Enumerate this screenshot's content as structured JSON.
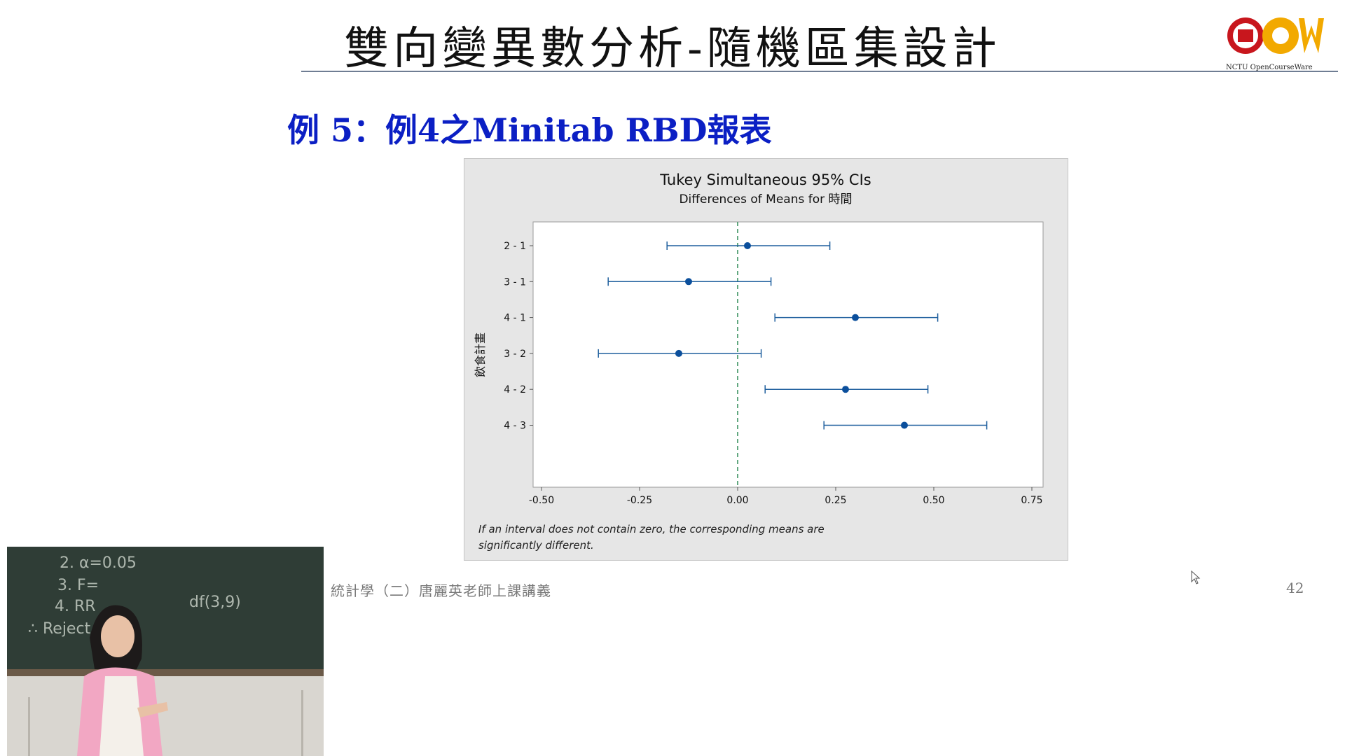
{
  "slide": {
    "title": "雙向變異數分析-隨機區集設計",
    "subtitle": "例 5：例4之Minitab RBD報表",
    "logo_text": "NCTU OpenCourseWare",
    "footer": "統計學（二）唐麗英老師上課講義",
    "page_number": "42"
  },
  "colors": {
    "subtitle": "#0b1fc4",
    "interval": "#1f5f9e",
    "point": "#0b4f9c",
    "zero_line": "#2e8b57",
    "chart_bg": "#e6e6e6"
  },
  "chart_data": {
    "type": "interval",
    "title": "Tukey Simultaneous 95% CIs",
    "subtitle": "Differences of Means for 時間",
    "ylabel": "飲食計畫",
    "xlabel": "",
    "xlim": [
      -0.5,
      0.75
    ],
    "xticks": [
      -0.5,
      -0.25,
      0.0,
      0.25,
      0.5,
      0.75
    ],
    "xtick_labels": [
      "-0.50",
      "-0.25",
      "0.00",
      "0.25",
      "0.50",
      "0.75"
    ],
    "reference_line": 0,
    "categories": [
      "2 - 1",
      "3 - 1",
      "4 - 1",
      "3 - 2",
      "4 - 2",
      "4 - 3"
    ],
    "intervals": [
      {
        "label": "2 - 1",
        "lower": -0.18,
        "estimate": 0.025,
        "upper": 0.235
      },
      {
        "label": "3 - 1",
        "lower": -0.33,
        "estimate": -0.125,
        "upper": 0.085
      },
      {
        "label": "4 - 1",
        "lower": 0.095,
        "estimate": 0.3,
        "upper": 0.51
      },
      {
        "label": "3 - 2",
        "lower": -0.355,
        "estimate": -0.15,
        "upper": 0.06
      },
      {
        "label": "4 - 2",
        "lower": 0.07,
        "estimate": 0.275,
        "upper": 0.485
      },
      {
        "label": "4 - 3",
        "lower": 0.22,
        "estimate": 0.425,
        "upper": 0.635
      }
    ],
    "note": "If an interval does not contain zero, the corresponding means are significantly different."
  },
  "video": {
    "board_text": [
      "2. α=0.05",
      "3. F=",
      "4. RR",
      "∴ Reject",
      "df(3,9)"
    ]
  }
}
